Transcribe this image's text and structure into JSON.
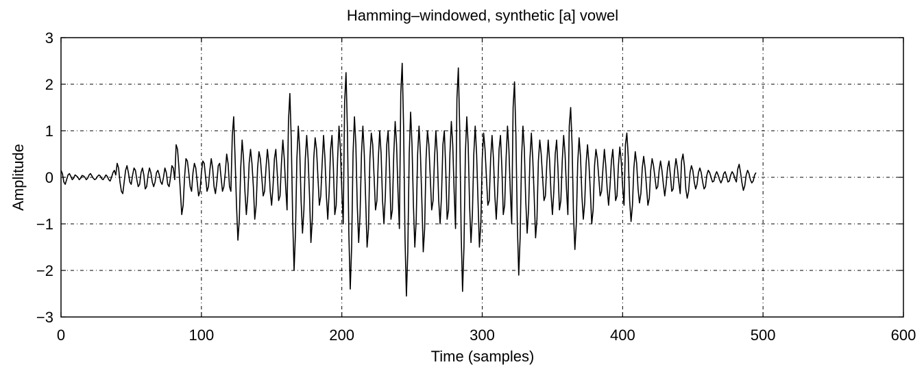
{
  "chart_data": {
    "type": "line",
    "title": "Hamming–windowed, synthetic [a] vowel",
    "xlabel": "Time (samples)",
    "ylabel": "Amplitude",
    "xlim": [
      0,
      600
    ],
    "ylim": [
      -3,
      3
    ],
    "xticks": [
      0,
      100,
      200,
      300,
      400,
      500,
      600
    ],
    "yticks": [
      -3,
      -2,
      -1,
      0,
      1,
      2,
      3
    ],
    "xtick_labels": [
      "0",
      "100",
      "200",
      "300",
      "400",
      "500",
      "600"
    ],
    "ytick_labels": [
      "−3",
      "−2",
      "−1",
      "0",
      "1",
      "2",
      "3"
    ],
    "grid": true,
    "grid_style": "dash-dot",
    "line_color": "#000000",
    "series": [
      {
        "x_start": 0,
        "x_step": 1,
        "values": [
          0.15,
          0.08,
          -0.1,
          -0.15,
          -0.05,
          0.05,
          0.08,
          0.02,
          -0.05,
          -0.02,
          0.05,
          0.03,
          0.0,
          -0.05,
          -0.02,
          0.04,
          0.03,
          0.0,
          -0.05,
          -0.02,
          0.05,
          0.08,
          0.03,
          -0.02,
          -0.05,
          -0.03,
          0.02,
          0.05,
          0.03,
          -0.03,
          -0.05,
          0.0,
          0.05,
          0.02,
          -0.05,
          -0.08,
          0.0,
          0.1,
          0.15,
          0.05,
          0.3,
          0.2,
          -0.1,
          -0.3,
          -0.35,
          -0.1,
          0.15,
          0.25,
          0.1,
          -0.1,
          -0.15,
          0.05,
          0.2,
          0.15,
          -0.05,
          -0.2,
          -0.15,
          0.1,
          0.2,
          0.05,
          -0.25,
          -0.2,
          0.05,
          0.2,
          0.1,
          -0.1,
          -0.2,
          -0.1,
          0.1,
          0.15,
          0.05,
          -0.1,
          -0.15,
          0.0,
          0.2,
          0.1,
          -0.15,
          -0.2,
          0.0,
          0.25,
          0.2,
          -0.05,
          0.7,
          0.6,
          0.2,
          -0.3,
          -0.8,
          -0.6,
          0.0,
          0.4,
          0.35,
          0.1,
          -0.2,
          -0.3,
          0.1,
          0.3,
          0.2,
          -0.1,
          -0.4,
          -0.3,
          0.1,
          0.35,
          0.3,
          0.0,
          -0.3,
          -0.2,
          0.15,
          0.4,
          0.2,
          -0.2,
          -0.35,
          -0.1,
          0.25,
          0.3,
          0.0,
          -0.3,
          -0.2,
          0.1,
          0.5,
          0.3,
          -0.2,
          -0.3,
          0.9,
          1.3,
          0.4,
          -0.6,
          -1.35,
          -0.9,
          0.2,
          0.8,
          0.4,
          -0.3,
          -0.8,
          -0.4,
          0.3,
          0.6,
          0.3,
          -0.2,
          -0.9,
          -0.6,
          0.2,
          0.55,
          0.4,
          0.0,
          -0.4,
          -0.3,
          0.2,
          0.6,
          0.3,
          -0.3,
          -0.6,
          -0.2,
          0.4,
          0.6,
          0.1,
          -0.5,
          -0.4,
          0.3,
          0.8,
          0.4,
          -0.2,
          -0.7,
          1.2,
          1.8,
          0.8,
          -0.9,
          -2.0,
          -1.2,
          0.4,
          1.1,
          0.6,
          -0.5,
          -1.2,
          -0.7,
          0.4,
          0.9,
          0.4,
          -0.4,
          -1.4,
          -0.9,
          0.4,
          0.85,
          0.6,
          0.0,
          -0.6,
          -0.4,
          0.3,
          0.9,
          0.4,
          -0.4,
          -0.9,
          -0.3,
          0.6,
          0.9,
          0.2,
          -0.8,
          -0.6,
          0.4,
          1.1,
          0.6,
          -0.3,
          -1.0,
          1.6,
          2.25,
          1.0,
          -1.2,
          -2.4,
          -1.5,
          0.5,
          1.3,
          0.7,
          -0.6,
          -1.4,
          -0.8,
          0.5,
          1.1,
          0.5,
          -0.5,
          -1.5,
          -1.1,
          0.4,
          0.95,
          0.7,
          0.0,
          -0.7,
          -0.5,
          0.4,
          1.0,
          0.5,
          -0.5,
          -1.0,
          -0.4,
          0.7,
          1.0,
          0.2,
          -0.9,
          -0.7,
          0.5,
          1.2,
          0.7,
          -0.3,
          -1.1,
          1.8,
          2.45,
          1.1,
          -1.3,
          -2.55,
          -1.6,
          0.5,
          1.4,
          0.7,
          -0.6,
          -1.5,
          -0.9,
          0.5,
          1.1,
          0.5,
          -0.5,
          -1.6,
          -1.1,
          0.4,
          1.0,
          0.7,
          0.0,
          -0.7,
          -0.5,
          0.4,
          1.0,
          0.5,
          -0.5,
          -1.0,
          -0.4,
          0.7,
          1.0,
          0.2,
          -0.9,
          -0.7,
          0.5,
          1.2,
          0.7,
          -0.3,
          -1.1,
          1.7,
          2.35,
          1.0,
          -1.2,
          -2.45,
          -1.5,
          0.5,
          1.3,
          0.7,
          -0.6,
          -1.4,
          -0.8,
          0.5,
          1.1,
          0.5,
          -0.5,
          -1.5,
          -1.0,
          0.4,
          0.95,
          0.6,
          0.0,
          -0.6,
          -0.5,
          0.4,
          0.9,
          0.4,
          -0.4,
          -0.9,
          -0.3,
          0.6,
          0.9,
          0.2,
          -0.8,
          -0.6,
          0.4,
          1.1,
          0.6,
          -0.3,
          -1.0,
          1.5,
          2.05,
          0.9,
          -1.0,
          -2.1,
          -1.3,
          0.4,
          1.1,
          0.6,
          -0.5,
          -1.2,
          -0.7,
          0.4,
          0.95,
          0.4,
          -0.4,
          -1.3,
          -0.9,
          0.35,
          0.8,
          0.5,
          0.0,
          -0.5,
          -0.4,
          0.3,
          0.8,
          0.35,
          -0.35,
          -0.8,
          -0.3,
          0.5,
          0.8,
          0.15,
          -0.7,
          -0.5,
          0.35,
          0.9,
          0.5,
          -0.25,
          -0.8,
          1.1,
          1.5,
          0.7,
          -0.8,
          -1.55,
          -1.0,
          0.3,
          0.85,
          0.45,
          -0.4,
          -0.9,
          -0.55,
          0.3,
          0.7,
          0.3,
          -0.3,
          -1.0,
          -0.7,
          0.25,
          0.6,
          0.4,
          0.0,
          -0.4,
          -0.3,
          0.2,
          0.6,
          0.25,
          -0.25,
          -0.6,
          -0.2,
          0.35,
          0.6,
          0.1,
          -0.5,
          -0.4,
          0.25,
          0.65,
          0.35,
          -0.2,
          -0.6,
          0.7,
          0.95,
          0.45,
          -0.5,
          -0.95,
          -0.6,
          0.2,
          0.55,
          0.3,
          -0.25,
          -0.55,
          -0.35,
          0.2,
          0.45,
          0.2,
          -0.2,
          -0.6,
          -0.45,
          0.15,
          0.4,
          0.25,
          0.0,
          -0.25,
          -0.2,
          0.15,
          0.35,
          0.15,
          -0.15,
          -0.4,
          -0.15,
          0.2,
          0.35,
          0.05,
          -0.3,
          -0.25,
          0.15,
          0.4,
          0.2,
          -0.1,
          -0.35,
          0.35,
          0.5,
          0.25,
          -0.25,
          -0.45,
          -0.3,
          0.1,
          0.25,
          0.15,
          -0.1,
          -0.25,
          -0.15,
          0.1,
          0.2,
          0.1,
          -0.1,
          -0.25,
          -0.2,
          0.05,
          0.15,
          0.1,
          0.0,
          -0.1,
          -0.08,
          0.05,
          0.12,
          0.05,
          -0.05,
          -0.12,
          -0.05,
          0.08,
          0.12,
          0.02,
          -0.1,
          -0.08,
          0.05,
          0.12,
          0.07,
          -0.03,
          -0.1,
          0.18,
          0.28,
          0.1,
          -0.12,
          -0.28,
          -0.18,
          0.05,
          0.15,
          0.08,
          -0.05,
          -0.12,
          -0.08,
          0.05,
          0.1
        ]
      }
    ]
  }
}
